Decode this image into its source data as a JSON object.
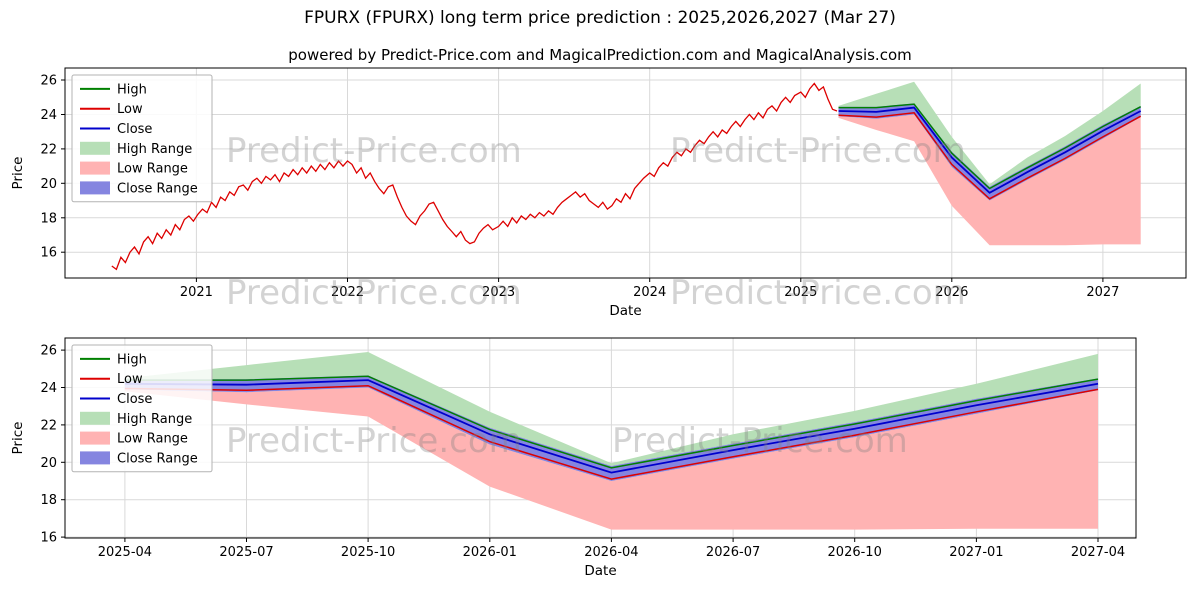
{
  "title": "FPURX (FPURX) long term price prediction : 2025,2026,2027 (Mar 27)",
  "subtitle": "powered by Predict-Price.com and MagicalPrediction.com and MagicalAnalysis.com",
  "watermark_text": "Predict-Price.com",
  "colors": {
    "high": "#008000",
    "low": "#dd0000",
    "close": "#0000cc",
    "high_range": "#b7dfb7",
    "low_range": "#ffb3b3",
    "close_range": "#8585e0",
    "historical": "#dd0000",
    "grid": "#d9d9d9",
    "axis": "#000000"
  },
  "legend": [
    {
      "label": "High",
      "type": "line",
      "color_key": "high"
    },
    {
      "label": "Low",
      "type": "line",
      "color_key": "low"
    },
    {
      "label": "Close",
      "type": "line",
      "color_key": "close"
    },
    {
      "label": "High Range",
      "type": "patch",
      "color_key": "high_range"
    },
    {
      "label": "Low Range",
      "type": "patch",
      "color_key": "low_range"
    },
    {
      "label": "Close Range",
      "type": "patch",
      "color_key": "close_range"
    }
  ],
  "chart_data": [
    {
      "name": "history-and-prediction-chart",
      "type": "line",
      "xlabel": "Date",
      "ylabel": "Price",
      "ylim": [
        14.5,
        26.7
      ],
      "yticks": [
        16,
        18,
        20,
        22,
        24,
        26
      ],
      "xticks": [
        {
          "label": "2021",
          "t": 2021
        },
        {
          "label": "2022",
          "t": 2022
        },
        {
          "label": "2023",
          "t": 2023
        },
        {
          "label": "2024",
          "t": 2024
        },
        {
          "label": "2025",
          "t": 2025
        },
        {
          "label": "2026",
          "t": 2026
        },
        {
          "label": "2027",
          "t": 2027
        }
      ],
      "historical": [
        [
          2020.44,
          15.2
        ],
        [
          2020.47,
          15.0
        ],
        [
          2020.5,
          15.7
        ],
        [
          2020.53,
          15.4
        ],
        [
          2020.56,
          16.0
        ],
        [
          2020.59,
          16.3
        ],
        [
          2020.62,
          15.9
        ],
        [
          2020.65,
          16.6
        ],
        [
          2020.68,
          16.9
        ],
        [
          2020.71,
          16.5
        ],
        [
          2020.74,
          17.1
        ],
        [
          2020.77,
          16.8
        ],
        [
          2020.8,
          17.3
        ],
        [
          2020.83,
          17.0
        ],
        [
          2020.86,
          17.6
        ],
        [
          2020.89,
          17.3
        ],
        [
          2020.92,
          17.9
        ],
        [
          2020.95,
          18.1
        ],
        [
          2020.98,
          17.8
        ],
        [
          2021.01,
          18.2
        ],
        [
          2021.04,
          18.5
        ],
        [
          2021.07,
          18.3
        ],
        [
          2021.1,
          18.9
        ],
        [
          2021.13,
          18.6
        ],
        [
          2021.16,
          19.2
        ],
        [
          2021.19,
          19.0
        ],
        [
          2021.22,
          19.5
        ],
        [
          2021.25,
          19.3
        ],
        [
          2021.28,
          19.8
        ],
        [
          2021.31,
          19.9
        ],
        [
          2021.34,
          19.6
        ],
        [
          2021.37,
          20.1
        ],
        [
          2021.4,
          20.3
        ],
        [
          2021.43,
          20.0
        ],
        [
          2021.46,
          20.4
        ],
        [
          2021.49,
          20.2
        ],
        [
          2021.52,
          20.5
        ],
        [
          2021.55,
          20.1
        ],
        [
          2021.58,
          20.6
        ],
        [
          2021.61,
          20.4
        ],
        [
          2021.64,
          20.8
        ],
        [
          2021.67,
          20.5
        ],
        [
          2021.7,
          20.9
        ],
        [
          2021.73,
          20.6
        ],
        [
          2021.76,
          21.0
        ],
        [
          2021.79,
          20.7
        ],
        [
          2021.82,
          21.1
        ],
        [
          2021.85,
          20.8
        ],
        [
          2021.88,
          21.2
        ],
        [
          2021.91,
          20.9
        ],
        [
          2021.94,
          21.3
        ],
        [
          2021.97,
          21.0
        ],
        [
          2022.0,
          21.3
        ],
        [
          2022.03,
          21.1
        ],
        [
          2022.06,
          20.6
        ],
        [
          2022.09,
          20.9
        ],
        [
          2022.12,
          20.3
        ],
        [
          2022.15,
          20.6
        ],
        [
          2022.18,
          20.1
        ],
        [
          2022.21,
          19.7
        ],
        [
          2022.24,
          19.4
        ],
        [
          2022.27,
          19.8
        ],
        [
          2022.3,
          19.9
        ],
        [
          2022.33,
          19.2
        ],
        [
          2022.36,
          18.6
        ],
        [
          2022.39,
          18.1
        ],
        [
          2022.42,
          17.8
        ],
        [
          2022.45,
          17.6
        ],
        [
          2022.48,
          18.1
        ],
        [
          2022.51,
          18.4
        ],
        [
          2022.54,
          18.8
        ],
        [
          2022.57,
          18.9
        ],
        [
          2022.6,
          18.4
        ],
        [
          2022.63,
          17.9
        ],
        [
          2022.66,
          17.5
        ],
        [
          2022.69,
          17.2
        ],
        [
          2022.72,
          16.9
        ],
        [
          2022.75,
          17.2
        ],
        [
          2022.78,
          16.7
        ],
        [
          2022.81,
          16.5
        ],
        [
          2022.84,
          16.6
        ],
        [
          2022.87,
          17.1
        ],
        [
          2022.9,
          17.4
        ],
        [
          2022.93,
          17.6
        ],
        [
          2022.96,
          17.3
        ],
        [
          2023.0,
          17.5
        ],
        [
          2023.03,
          17.8
        ],
        [
          2023.06,
          17.5
        ],
        [
          2023.09,
          18.0
        ],
        [
          2023.12,
          17.7
        ],
        [
          2023.15,
          18.1
        ],
        [
          2023.18,
          17.9
        ],
        [
          2023.21,
          18.2
        ],
        [
          2023.24,
          18.0
        ],
        [
          2023.27,
          18.3
        ],
        [
          2023.3,
          18.1
        ],
        [
          2023.33,
          18.4
        ],
        [
          2023.36,
          18.2
        ],
        [
          2023.39,
          18.6
        ],
        [
          2023.42,
          18.9
        ],
        [
          2023.45,
          19.1
        ],
        [
          2023.48,
          19.3
        ],
        [
          2023.51,
          19.5
        ],
        [
          2023.54,
          19.2
        ],
        [
          2023.57,
          19.4
        ],
        [
          2023.6,
          19.0
        ],
        [
          2023.63,
          18.8
        ],
        [
          2023.66,
          18.6
        ],
        [
          2023.69,
          18.9
        ],
        [
          2023.72,
          18.5
        ],
        [
          2023.75,
          18.7
        ],
        [
          2023.78,
          19.1
        ],
        [
          2023.81,
          18.9
        ],
        [
          2023.84,
          19.4
        ],
        [
          2023.87,
          19.1
        ],
        [
          2023.9,
          19.7
        ],
        [
          2023.93,
          20.0
        ],
        [
          2023.96,
          20.3
        ],
        [
          2024.0,
          20.6
        ],
        [
          2024.03,
          20.4
        ],
        [
          2024.06,
          20.9
        ],
        [
          2024.09,
          21.2
        ],
        [
          2024.12,
          21.0
        ],
        [
          2024.15,
          21.5
        ],
        [
          2024.18,
          21.8
        ],
        [
          2024.21,
          21.6
        ],
        [
          2024.24,
          22.0
        ],
        [
          2024.27,
          21.8
        ],
        [
          2024.3,
          22.2
        ],
        [
          2024.33,
          22.5
        ],
        [
          2024.36,
          22.3
        ],
        [
          2024.39,
          22.7
        ],
        [
          2024.42,
          23.0
        ],
        [
          2024.45,
          22.7
        ],
        [
          2024.48,
          23.1
        ],
        [
          2024.51,
          22.9
        ],
        [
          2024.54,
          23.3
        ],
        [
          2024.57,
          23.6
        ],
        [
          2024.6,
          23.3
        ],
        [
          2024.63,
          23.7
        ],
        [
          2024.66,
          24.0
        ],
        [
          2024.69,
          23.7
        ],
        [
          2024.72,
          24.1
        ],
        [
          2024.75,
          23.8
        ],
        [
          2024.78,
          24.3
        ],
        [
          2024.81,
          24.5
        ],
        [
          2024.84,
          24.2
        ],
        [
          2024.87,
          24.7
        ],
        [
          2024.9,
          25.0
        ],
        [
          2024.93,
          24.7
        ],
        [
          2024.96,
          25.1
        ],
        [
          2025.0,
          25.3
        ],
        [
          2025.03,
          25.0
        ],
        [
          2025.06,
          25.5
        ],
        [
          2025.09,
          25.8
        ],
        [
          2025.12,
          25.4
        ],
        [
          2025.15,
          25.6
        ],
        [
          2025.18,
          24.9
        ],
        [
          2025.21,
          24.3
        ],
        [
          2025.24,
          24.2
        ]
      ],
      "prediction": {
        "x_labels": [
          "2025-04",
          "2025-07",
          "2025-10",
          "2026-01",
          "2026-04",
          "2026-07",
          "2026-10",
          "2027-01",
          "2027-04"
        ],
        "t": [
          2025.25,
          2025.5,
          2025.75,
          2026.0,
          2026.25,
          2026.5,
          2026.75,
          2027.0,
          2027.25
        ],
        "high": [
          24.4,
          24.4,
          24.6,
          21.75,
          19.7,
          20.9,
          22.05,
          23.3,
          24.45
        ],
        "low": [
          23.95,
          23.85,
          24.1,
          21.1,
          19.1,
          20.3,
          21.45,
          22.7,
          23.9
        ],
        "close": [
          24.2,
          24.15,
          24.4,
          21.5,
          19.45,
          20.65,
          21.8,
          23.05,
          24.2
        ],
        "close_range_top": [
          24.45,
          24.45,
          24.65,
          21.85,
          19.8,
          21.0,
          22.15,
          23.4,
          24.5
        ],
        "close_range_bottom": [
          23.9,
          23.75,
          24.0,
          20.95,
          19.0,
          20.2,
          21.35,
          22.6,
          23.85
        ],
        "high_range_top": [
          24.5,
          25.2,
          25.9,
          22.7,
          19.95,
          21.5,
          22.75,
          24.2,
          25.8
        ],
        "low_range_bottom": [
          23.8,
          23.1,
          22.45,
          18.7,
          16.4,
          16.4,
          16.4,
          16.45,
          16.45
        ]
      }
    },
    {
      "name": "prediction-detail-chart",
      "type": "line",
      "xlabel": "Date",
      "ylabel": "Price",
      "ylim": [
        15.95,
        26.65
      ],
      "yticks": [
        16,
        18,
        20,
        22,
        24,
        26
      ],
      "xticks": [
        {
          "label": "2025-04",
          "t": 2025.25
        },
        {
          "label": "2025-07",
          "t": 2025.5
        },
        {
          "label": "2025-10",
          "t": 2025.75
        },
        {
          "label": "2026-01",
          "t": 2026.0
        },
        {
          "label": "2026-04",
          "t": 2026.25
        },
        {
          "label": "2026-07",
          "t": 2026.5
        },
        {
          "label": "2026-10",
          "t": 2026.75
        },
        {
          "label": "2027-01",
          "t": 2027.0
        },
        {
          "label": "2027-04",
          "t": 2027.25
        }
      ],
      "prediction": {
        "x_labels": [
          "2025-04",
          "2025-07",
          "2025-10",
          "2026-01",
          "2026-04",
          "2026-07",
          "2026-10",
          "2027-01",
          "2027-04"
        ],
        "t": [
          2025.25,
          2025.5,
          2025.75,
          2026.0,
          2026.25,
          2026.5,
          2026.75,
          2027.0,
          2027.25
        ],
        "high": [
          24.4,
          24.4,
          24.6,
          21.75,
          19.7,
          20.9,
          22.05,
          23.3,
          24.45
        ],
        "low": [
          23.95,
          23.85,
          24.1,
          21.1,
          19.1,
          20.3,
          21.45,
          22.7,
          23.9
        ],
        "close": [
          24.2,
          24.15,
          24.4,
          21.5,
          19.45,
          20.65,
          21.8,
          23.05,
          24.2
        ],
        "close_range_top": [
          24.45,
          24.45,
          24.65,
          21.85,
          19.8,
          21.0,
          22.15,
          23.4,
          24.5
        ],
        "close_range_bottom": [
          23.9,
          23.75,
          24.0,
          20.95,
          19.0,
          20.2,
          21.35,
          22.6,
          23.85
        ],
        "high_range_top": [
          24.5,
          25.2,
          25.9,
          22.7,
          19.95,
          21.5,
          22.75,
          24.2,
          25.8
        ],
        "low_range_bottom": [
          23.8,
          23.1,
          22.45,
          18.7,
          16.4,
          16.4,
          16.4,
          16.45,
          16.45
        ]
      }
    }
  ]
}
